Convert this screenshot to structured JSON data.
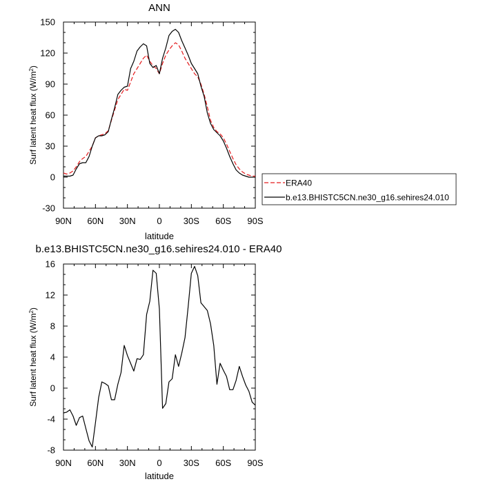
{
  "chart_data": [
    {
      "type": "line",
      "title": "ANN",
      "xlabel": "latitude",
      "ylabel": "Surf latent heat flux (W/m",
      "ylabel_sup": "2",
      "ylabel_close": ")",
      "xlim": [
        -90,
        90
      ],
      "ylim": [
        -30,
        150
      ],
      "xticks": [
        -90,
        -60,
        -30,
        0,
        30,
        60,
        90
      ],
      "xtick_labels": [
        "90N",
        "60N",
        "30N",
        "0",
        "30S",
        "60S",
        "90S"
      ],
      "yticks": [
        -30,
        0,
        30,
        60,
        90,
        120,
        150
      ],
      "ytick_labels": [
        "-30",
        "0",
        "30",
        "60",
        "90",
        "120",
        "150"
      ],
      "grid": false,
      "legend_placement": "right",
      "series": [
        {
          "name": "ERA40",
          "color": "#e41a1c",
          "dash": "dashed",
          "x": [
            -90,
            -87,
            -84,
            -81,
            -78,
            -75,
            -72,
            -69,
            -66,
            -63,
            -60,
            -57,
            -54,
            -51,
            -48,
            -45,
            -42,
            -39,
            -36,
            -33,
            -30,
            -27,
            -24,
            -21,
            -18,
            -15,
            -12,
            -9,
            -6,
            -3,
            0,
            3,
            6,
            9,
            12,
            15,
            18,
            21,
            24,
            27,
            30,
            33,
            36,
            39,
            42,
            45,
            48,
            51,
            54,
            57,
            60,
            63,
            66,
            69,
            72,
            75,
            78,
            81,
            84,
            87,
            90
          ],
          "values": [
            4,
            3,
            4,
            6,
            10,
            15,
            18,
            20,
            25,
            30,
            38,
            40,
            41,
            42,
            45,
            55,
            65,
            75,
            80,
            85,
            84,
            92,
            100,
            105,
            110,
            115,
            118,
            112,
            108,
            105,
            100,
            110,
            118,
            123,
            127,
            130,
            128,
            122,
            115,
            110,
            105,
            100,
            97,
            90,
            80,
            68,
            55,
            48,
            44,
            42,
            38,
            32,
            25,
            18,
            12,
            8,
            5,
            3,
            2,
            1,
            1
          ]
        },
        {
          "name": "b.e13.BHISTC5CN.ne30_g16.sehires24.010",
          "color": "#000000",
          "dash": "solid",
          "x": [
            -90,
            -87,
            -84,
            -81,
            -78,
            -75,
            -72,
            -69,
            -66,
            -63,
            -60,
            -57,
            -54,
            -51,
            -48,
            -45,
            -42,
            -39,
            -36,
            -33,
            -30,
            -27,
            -24,
            -21,
            -18,
            -15,
            -12,
            -9,
            -6,
            -3,
            0,
            3,
            6,
            9,
            12,
            15,
            18,
            21,
            24,
            27,
            30,
            33,
            36,
            39,
            42,
            45,
            48,
            51,
            54,
            57,
            60,
            63,
            66,
            69,
            72,
            75,
            78,
            81,
            84,
            87,
            90
          ],
          "values": [
            1,
            1,
            1,
            2,
            8,
            13,
            14,
            14,
            20,
            30,
            38,
            40,
            40,
            41,
            44,
            56,
            67,
            80,
            84,
            87,
            88,
            105,
            112,
            122,
            126,
            129,
            127,
            110,
            106,
            108,
            100,
            115,
            125,
            137,
            141,
            143,
            140,
            132,
            125,
            118,
            110,
            105,
            100,
            88,
            78,
            62,
            52,
            46,
            43,
            40,
            35,
            28,
            20,
            13,
            7,
            4,
            2,
            1,
            0,
            0,
            0
          ]
        }
      ]
    },
    {
      "type": "line",
      "title": "b.e13.BHISTC5CN.ne30_g16.sehires24.010 - ERA40",
      "xlabel": "latitude",
      "ylabel": "Surf latent heat flux (W/m",
      "ylabel_sup": "2",
      "ylabel_close": ")",
      "xlim": [
        -90,
        90
      ],
      "ylim": [
        -8,
        16
      ],
      "xticks": [
        -90,
        -60,
        -30,
        0,
        30,
        60,
        90
      ],
      "xtick_labels": [
        "90N",
        "60N",
        "30N",
        "0",
        "30S",
        "60S",
        "90S"
      ],
      "yticks": [
        -8,
        -4,
        0,
        4,
        8,
        12,
        16
      ],
      "ytick_labels": [
        "-8",
        "-4",
        "0",
        "4",
        "8",
        "12",
        "16"
      ],
      "grid": false,
      "series": [
        {
          "color": "#000000",
          "dash": "solid",
          "x": [
            -90,
            -87,
            -84,
            -81,
            -78,
            -75,
            -72,
            -69,
            -66,
            -63,
            -60,
            -57,
            -54,
            -51,
            -48,
            -45,
            -42,
            -39,
            -36,
            -33,
            -30,
            -27,
            -24,
            -21,
            -18,
            -15,
            -12,
            -9,
            -6,
            -3,
            0,
            3,
            6,
            9,
            12,
            15,
            18,
            21,
            24,
            27,
            30,
            33,
            36,
            39,
            42,
            45,
            48,
            51,
            54,
            57,
            60,
            63,
            66,
            69,
            72,
            75,
            78,
            81,
            84,
            87,
            90
          ],
          "values": [
            -3.2,
            -3.1,
            -2.8,
            -3.6,
            -4.8,
            -3.8,
            -3.6,
            -5.2,
            -6.8,
            -7.6,
            -4.5,
            -1.2,
            0.8,
            0.6,
            0.3,
            -1.5,
            -1.5,
            0.5,
            2.0,
            5.5,
            4.2,
            3.2,
            2.2,
            3.8,
            3.7,
            4.3,
            9.5,
            11.2,
            15.2,
            14.8,
            10.2,
            -2.6,
            -2.0,
            0.8,
            1.2,
            4.3,
            2.8,
            4.5,
            6.5,
            10.5,
            14.8,
            15.7,
            14.5,
            11.0,
            10.5,
            10.0,
            8.3,
            5.5,
            0.5,
            3.2,
            2.3,
            1.5,
            -0.2,
            -0.2,
            1.0,
            2.8,
            1.5,
            0.4,
            -0.4,
            -1.8,
            -2.2
          ]
        }
      ]
    }
  ]
}
